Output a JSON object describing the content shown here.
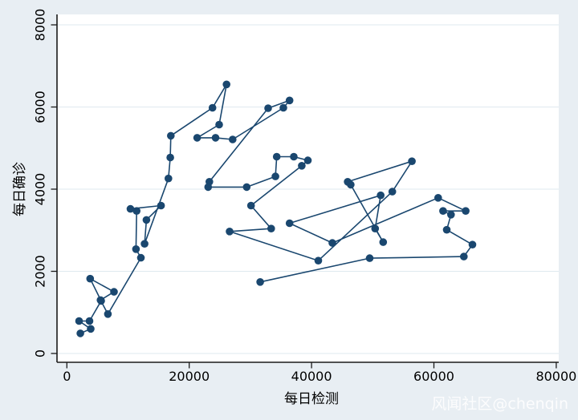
{
  "watermark": "风闻社区@chenqin",
  "colors": {
    "background": "#e8eef3",
    "plot_background": "#ffffff",
    "gridline": "#dfe9ef",
    "axis_line": "#1a1a1a",
    "series": "#1a476f",
    "watermark": "#ffffff"
  },
  "chart_data": {
    "type": "line",
    "title": "",
    "xlabel": "每日检测",
    "ylabel": "每日确诊",
    "legend": "none",
    "grid": "horizontal",
    "x_ticks": [
      0,
      20000,
      40000,
      60000,
      80000
    ],
    "y_ticks": [
      0,
      2000,
      4000,
      6000,
      8000
    ],
    "xlim": [
      -1600,
      82000
    ],
    "ylim": [
      -220,
      8620
    ],
    "series": [
      {
        "name": "daily-confirmed-vs-tests-trajectory",
        "marker": "circle",
        "points": [
          [
            2200,
            490
          ],
          [
            3900,
            600
          ],
          [
            2000,
            790
          ],
          [
            3700,
            790
          ],
          [
            5600,
            1280
          ],
          [
            3800,
            1820
          ],
          [
            7700,
            1500
          ],
          [
            5500,
            1300
          ],
          [
            6700,
            960
          ],
          [
            12100,
            2330
          ],
          [
            11300,
            2540
          ],
          [
            11400,
            3470
          ],
          [
            10400,
            3520
          ],
          [
            15400,
            3600
          ],
          [
            13000,
            3250
          ],
          [
            12700,
            2670
          ],
          [
            16600,
            4260
          ],
          [
            16900,
            4770
          ],
          [
            17000,
            5300
          ],
          [
            23800,
            5980
          ],
          [
            26100,
            6550
          ],
          [
            24900,
            5570
          ],
          [
            21300,
            5250
          ],
          [
            24300,
            5250
          ],
          [
            27100,
            5210
          ],
          [
            35400,
            5980
          ],
          [
            36400,
            6160
          ],
          [
            32900,
            5970
          ],
          [
            23300,
            4180
          ],
          [
            23100,
            4050
          ],
          [
            29400,
            4050
          ],
          [
            34100,
            4310
          ],
          [
            34300,
            4790
          ],
          [
            37100,
            4790
          ],
          [
            39400,
            4700
          ],
          [
            38400,
            4570
          ],
          [
            30100,
            3600
          ],
          [
            33400,
            3040
          ],
          [
            26600,
            2970
          ],
          [
            41100,
            2260
          ],
          [
            53200,
            3940
          ],
          [
            56400,
            4680
          ],
          [
            45900,
            4180
          ],
          [
            46400,
            4110
          ],
          [
            51700,
            2710
          ],
          [
            50400,
            3040
          ],
          [
            51300,
            3850
          ],
          [
            36400,
            3170
          ],
          [
            43400,
            2690
          ],
          [
            60700,
            3790
          ],
          [
            65200,
            3470
          ],
          [
            61500,
            3470
          ],
          [
            62800,
            3380
          ],
          [
            62100,
            3010
          ],
          [
            66300,
            2650
          ],
          [
            64900,
            2360
          ],
          [
            49500,
            2320
          ],
          [
            31600,
            1740
          ]
        ]
      }
    ]
  }
}
